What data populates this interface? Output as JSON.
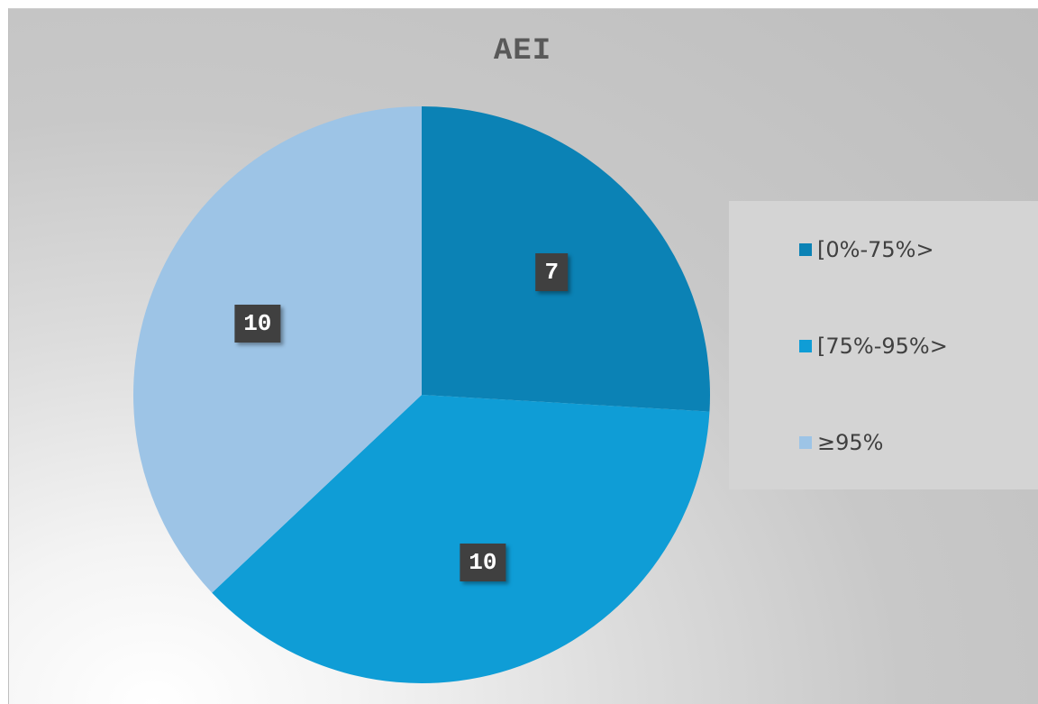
{
  "chart_data": {
    "type": "pie",
    "title": "AEI",
    "categories": [
      "[0%-75%>",
      "[75%-95%>",
      "≥95%"
    ],
    "values": [
      7,
      10,
      10
    ],
    "colors": [
      "#0b82b5",
      "#0f9dd6",
      "#9dc4e6"
    ],
    "start_angle_deg": 0,
    "direction": "clockwise",
    "legend_position": "right"
  }
}
